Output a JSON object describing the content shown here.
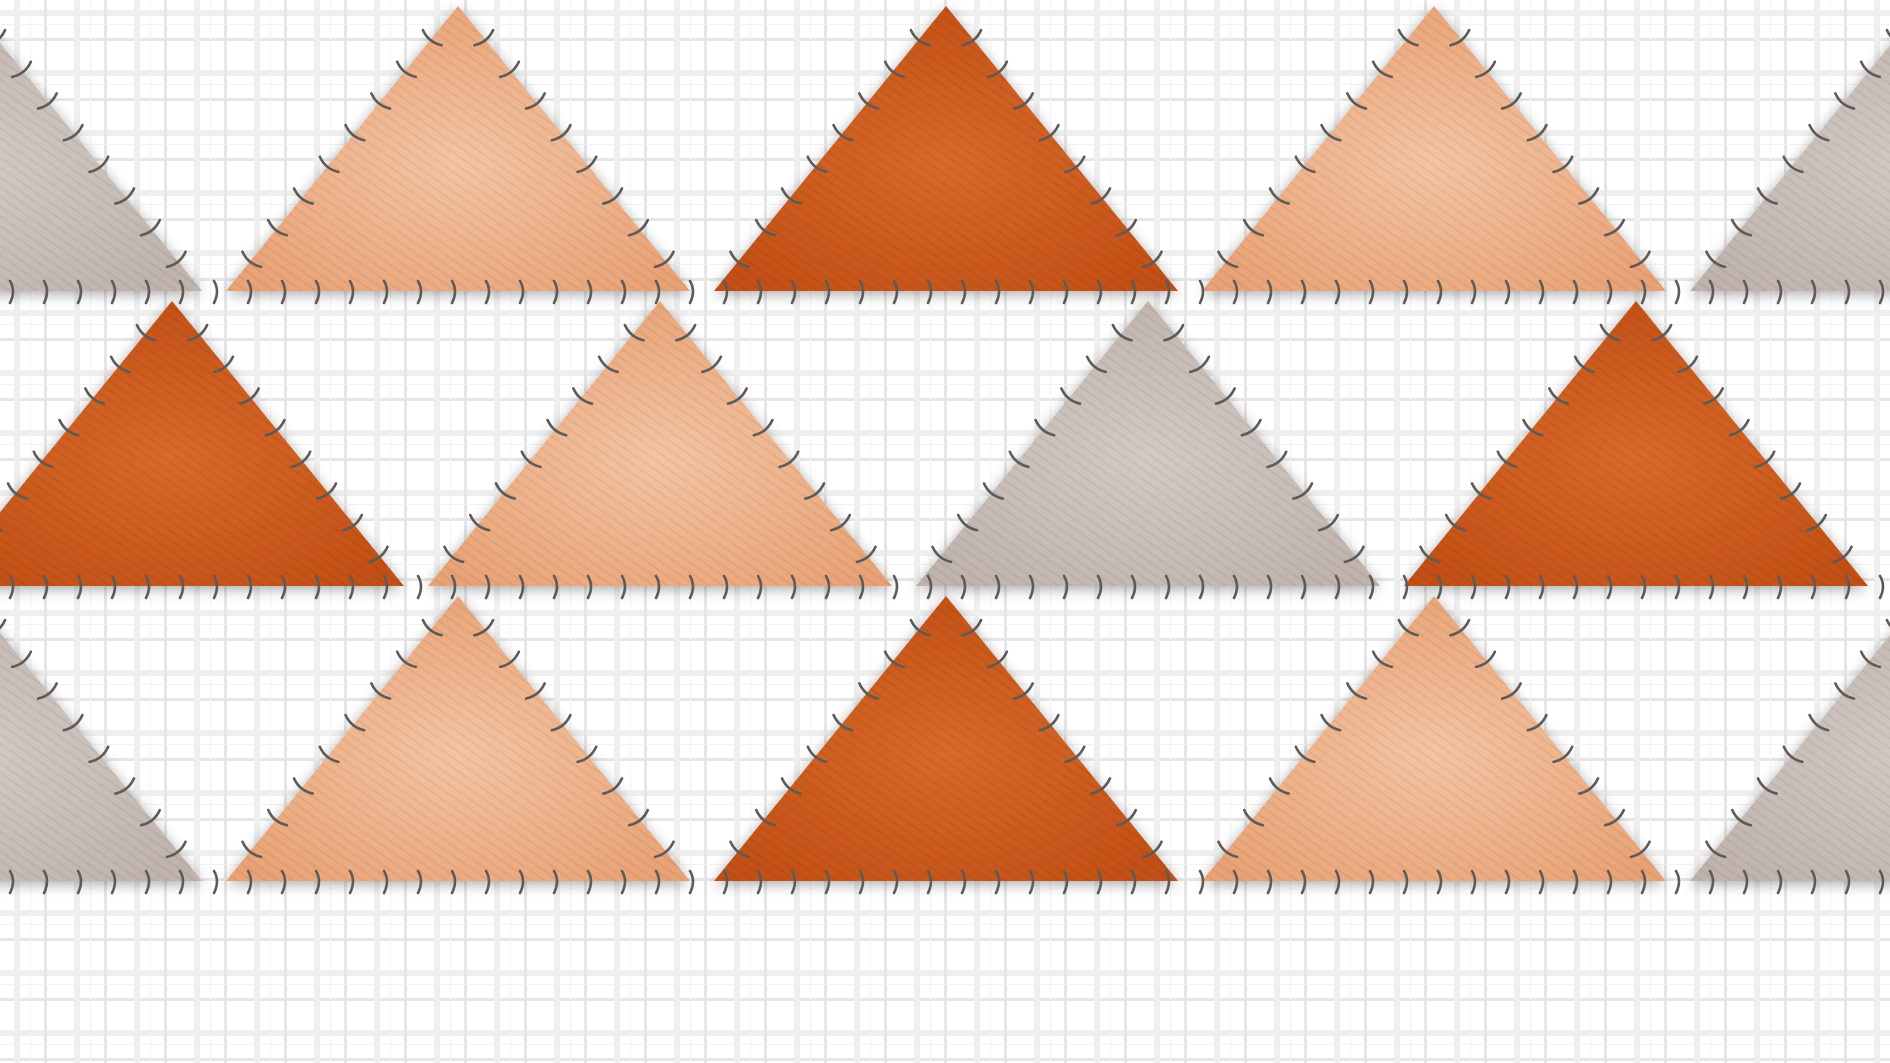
{
  "image": {
    "subject": "stitched-triangle-patchwork-on-plaid",
    "rows": 3,
    "apex_columns_row1": [
      0,
      1,
      2,
      3,
      4
    ],
    "colors": {
      "background": "#ffffff",
      "plaid_line": "#e4e4e4",
      "plaid_line_light": "#f0f0f0",
      "burnt_orange": "#c8561a",
      "burnt_orange_light": "#d96a2a",
      "peach": "#eba87e",
      "peach_light": "#f3c4a3",
      "taupe": "#c3b7b0",
      "taupe_light": "#d3cac5",
      "thread": "#5d5a58"
    },
    "rows_pattern": [
      {
        "row": 1,
        "up": [
          "taupe",
          "peach",
          "burnt_orange",
          "peach",
          "taupe"
        ]
      },
      {
        "row": 2,
        "up": [
          "burnt_orange",
          "peach",
          "taupe",
          "burnt_orange"
        ]
      },
      {
        "row": 3,
        "up": [
          "taupe",
          "peach",
          "burnt_orange",
          "peach",
          "taupe"
        ]
      }
    ]
  }
}
